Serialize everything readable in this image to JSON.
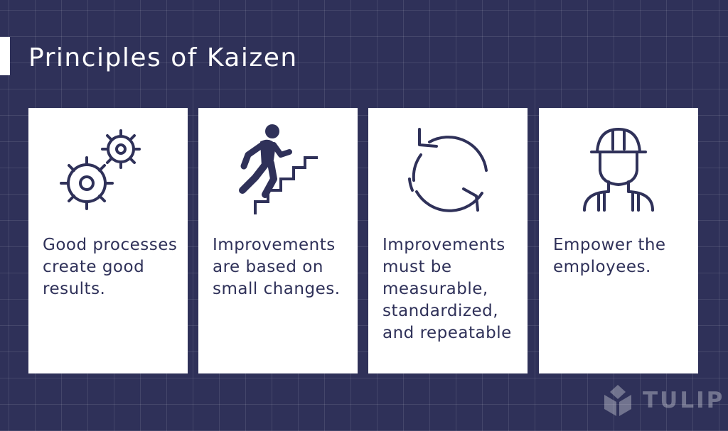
{
  "title": "Principles of Kaizen",
  "cards": [
    {
      "icon": "gears-icon",
      "text": "Good processes create good results."
    },
    {
      "icon": "stairs-climber-icon",
      "text": "Improvements are based on small changes."
    },
    {
      "icon": "refresh-cycle-icon",
      "text": "Improvements must be measurable, standardized, and repeatable"
    },
    {
      "icon": "hardhat-worker-icon",
      "text": "Empower the employees."
    }
  ],
  "logo": {
    "text": "TULIP",
    "icon": "tulip-logo-icon"
  },
  "colors": {
    "background": "#2f3159",
    "card": "#ffffff",
    "text": "#2f3159",
    "title": "#ffffff"
  }
}
